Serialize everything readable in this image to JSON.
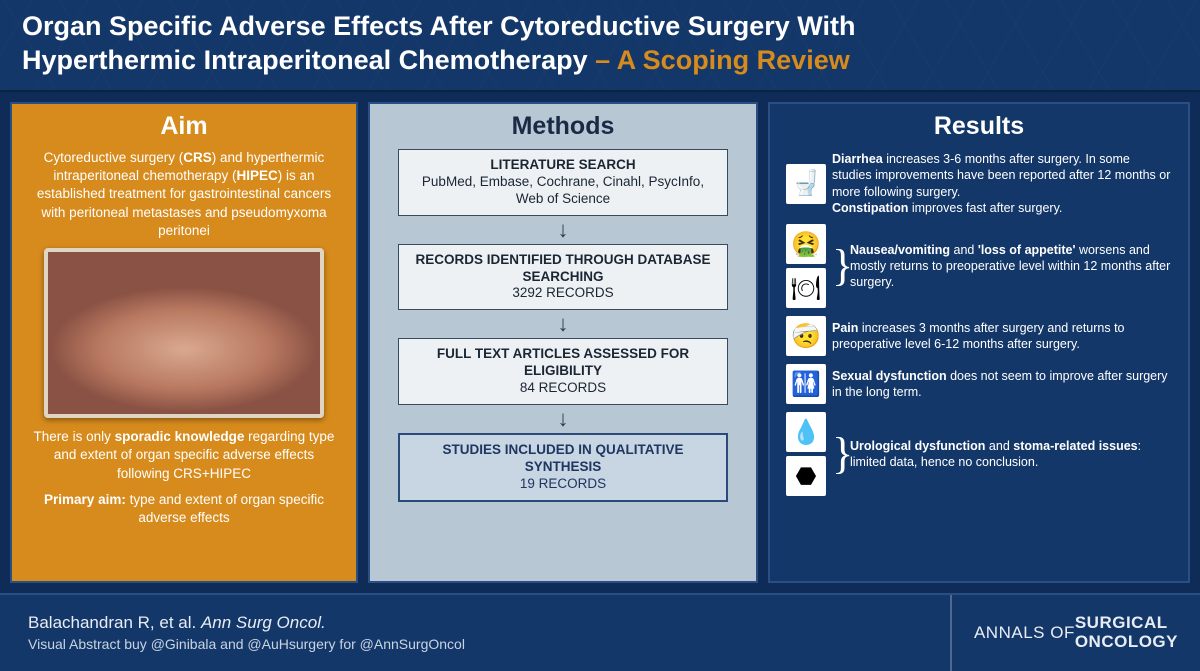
{
  "colors": {
    "navy": "#143769",
    "deep_navy": "#0f2b57",
    "gold": "#d78b1c",
    "methods_bg": "#b8c7d4",
    "box_bg": "#eef1f4",
    "box_border": "#394a5c",
    "final_box_bg": "#c7d6e2",
    "final_box_border": "#2a4a7a",
    "panel_border": "#2b4f85"
  },
  "title": {
    "line1": "Organ Specific Adverse Effects After Cytoreductive Surgery With",
    "line2_a": "Hyperthermic Intraperitoneal Chemotherapy ",
    "line2_b": "– A Scoping Review"
  },
  "aim": {
    "heading": "Aim",
    "p1_html": "Cytoreductive surgery (<b>CRS</b>) and hyperthermic intraperitoneal chemotherapy (<b>HIPEC</b>) is an established treatment for gastrointestinal cancers with peritoneal metastases and pseudomyxoma peritonei",
    "image_alt": "Surgery illustration",
    "p2_html": "There is only <b>sporadic knowledge</b> regarding type and extent of organ specific adverse effects following CRS+HIPEC",
    "p3_html": "<b>Primary aim:</b> type and extent of organ specific adverse effects"
  },
  "methods": {
    "heading": "Methods",
    "steps": [
      {
        "title": "LITERATURE SEARCH",
        "body": "PubMed, Embase, Cochrane, Cinahl, PsycInfo, Web of Science",
        "final": false
      },
      {
        "title": "RECORDS IDENTIFIED THROUGH DATABASE SEARCHING",
        "body": "3292 RECORDS",
        "final": false
      },
      {
        "title": "FULL TEXT ARTICLES ASSESSED FOR ELIGIBILITY",
        "body": "84 RECORDS",
        "final": false
      },
      {
        "title": "STUDIES INCLUDED IN QUALITATIVE SYNTHESIS",
        "body": "19 RECORDS",
        "final": true
      }
    ]
  },
  "results": {
    "heading": "Results",
    "items": [
      {
        "icons": [
          "🚽"
        ],
        "brace": false,
        "html": "<b>Diarrhea</b> increases 3-6 months after surgery. In some studies improvements have been reported after 12 months or more following surgery.<br><b>Constipation</b> improves fast after surgery."
      },
      {
        "icons": [
          "🤮",
          "🍽"
        ],
        "brace": true,
        "html": "<b>Nausea/vomiting</b> and <b>'loss of appetite'</b> worsens and mostly returns to preoperative level within 12 months after surgery."
      },
      {
        "icons": [
          "🤕"
        ],
        "brace": false,
        "html": "<b>Pain</b> increases 3 months after surgery and returns to preoperative level 6-12 months after surgery."
      },
      {
        "icons": [
          "🚻"
        ],
        "brace": false,
        "html": "<b>Sexual dysfunction</b> does not seem to improve after surgery in the long term."
      },
      {
        "icons": [
          "💧",
          "⬣"
        ],
        "brace": true,
        "html": "<b>Urological dysfunction</b> and <b>stoma-related issues</b>: limited data, hence no conclusion."
      }
    ]
  },
  "footer": {
    "line1_html": "Balachandran R, et al. <i>Ann Surg Oncol.</i>",
    "line2": "Visual Abstract buy @Ginibala and @AuHsurgery for @AnnSurgOncol",
    "logo_html": "ANNALS OF<br><b>SURGICAL<br>ONCOLOGY</b>"
  }
}
